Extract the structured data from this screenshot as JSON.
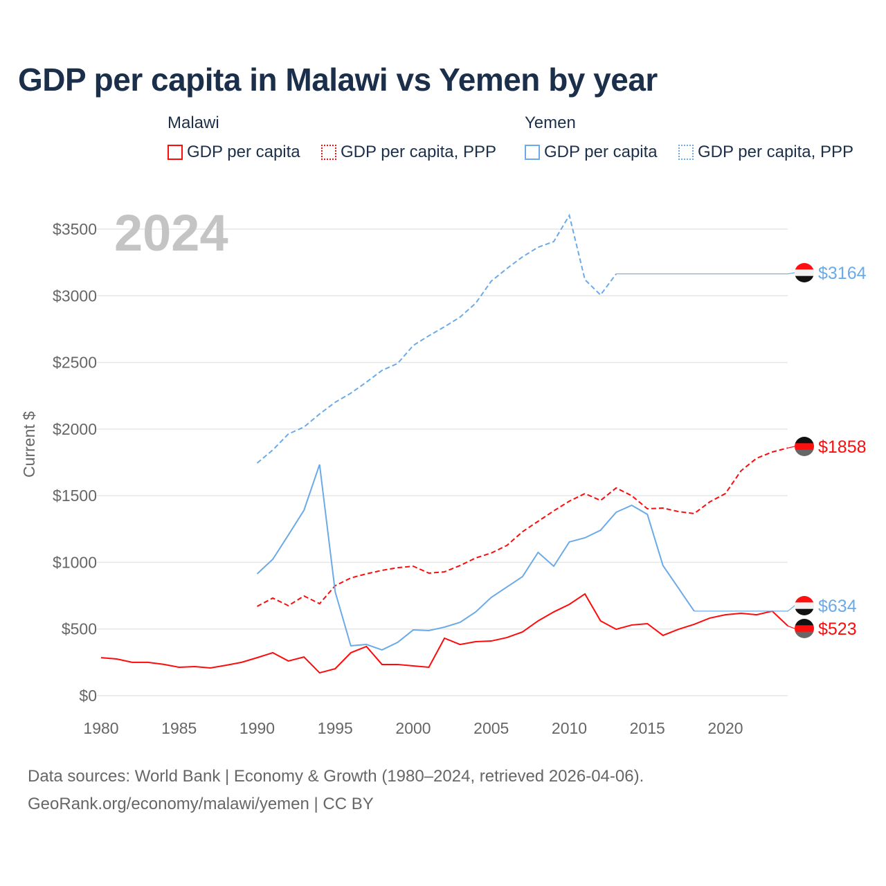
{
  "chart_data": {
    "type": "line",
    "title": "GDP per capita in Malawi vs Yemen by year",
    "year_label": "2024",
    "ylabel": "Current $",
    "xlabel": "",
    "xlim": [
      1980,
      2024
    ],
    "ylim": [
      0,
      3500
    ],
    "x_ticks": [
      1980,
      1985,
      1990,
      1995,
      2000,
      2005,
      2010,
      2015,
      2020
    ],
    "y_ticks": [
      {
        "v": 0,
        "label": "$0"
      },
      {
        "v": 500,
        "label": "$500"
      },
      {
        "v": 1000,
        "label": "$1000"
      },
      {
        "v": 1500,
        "label": "$1500"
      },
      {
        "v": 2000,
        "label": "$2000"
      },
      {
        "v": 2500,
        "label": "$2500"
      },
      {
        "v": 3000,
        "label": "$3000"
      },
      {
        "v": 3500,
        "label": "$3500"
      }
    ],
    "grid": true,
    "legend": {
      "placement": "top",
      "groups": [
        {
          "name": "Malawi",
          "items": [
            "GDP per capita",
            "GDP per capita, PPP"
          ]
        },
        {
          "name": "Yemen",
          "items": [
            "GDP per capita",
            "GDP per capita, PPP"
          ]
        }
      ]
    },
    "series": [
      {
        "name": "Malawi GDP per capita",
        "color": "#ff0a0a",
        "dash": false,
        "start": 1980,
        "values": [
          285,
          275,
          250,
          250,
          235,
          213,
          218,
          208,
          228,
          250,
          285,
          322,
          260,
          290,
          171,
          202,
          322,
          369,
          234,
          234,
          223,
          213,
          431,
          384,
          405,
          410,
          436,
          478,
          561,
          628,
          685,
          763,
          561,
          498,
          530,
          540,
          452,
          498,
          535,
          582,
          607,
          618,
          607,
          634,
          523
        ],
        "end_label": "$523",
        "flag": "malawi"
      },
      {
        "name": "Malawi GDP per capita, PPP",
        "color": "#ff0a0a",
        "dash": true,
        "start": 1990,
        "values": [
          670,
          732,
          675,
          748,
          690,
          825,
          883,
          914,
          940,
          960,
          971,
          919,
          929,
          976,
          1033,
          1070,
          1127,
          1230,
          1308,
          1386,
          1459,
          1516,
          1464,
          1558,
          1500,
          1402,
          1407,
          1381,
          1366,
          1454,
          1516,
          1687,
          1781,
          1828,
          1858
        ],
        "end_label": "$1858",
        "flag": "malawi"
      },
      {
        "name": "Yemen GDP per capita",
        "color": "#6aaae8",
        "dash": false,
        "start": 1990,
        "values": [
          914,
          1023,
          1205,
          1391,
          1734,
          779,
          374,
          384,
          343,
          400,
          493,
          488,
          514,
          550,
          628,
          737,
          815,
          893,
          1075,
          971,
          1153,
          1184,
          1241,
          1376,
          1428,
          1360,
          976,
          805,
          634
        ],
        "end_label": "$634",
        "flag": "yemen"
      },
      {
        "name": "Yemen GDP per capita, PPP",
        "color": "#6aaae8",
        "dash": true,
        "start": 1990,
        "values": [
          1745,
          1843,
          1963,
          2015,
          2113,
          2201,
          2269,
          2352,
          2440,
          2492,
          2627,
          2700,
          2767,
          2840,
          2944,
          3110,
          3204,
          3292,
          3364,
          3406,
          3603,
          3121,
          3006,
          3164
        ],
        "end_label": "$3164",
        "flag": "yemen"
      }
    ]
  },
  "source": {
    "line1": "Data sources: World Bank | Economy & Growth (1980–2024, retrieved 2026-04-06).",
    "line2": "GeoRank.org/economy/malawi/yemen | CC BY"
  }
}
